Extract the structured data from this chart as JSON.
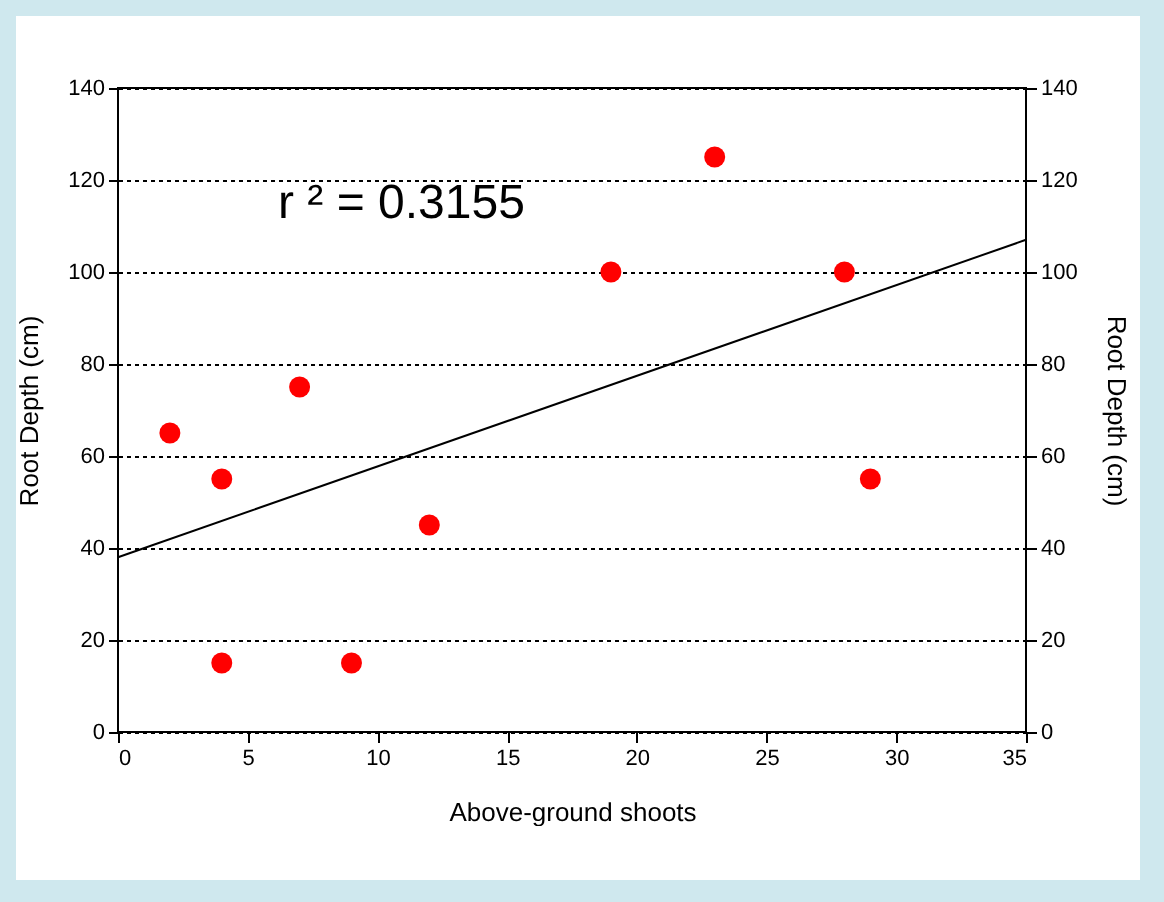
{
  "chart_data": {
    "type": "scatter",
    "xlabel": "Above-ground shoots",
    "ylabel": "Root Depth (cm)",
    "y2label": "Root Depth (cm)",
    "annotations": [
      "r ² = 0.3155"
    ],
    "series": [
      {
        "color": "#ff0000",
        "x": [
          2,
          4,
          4,
          7,
          9,
          12,
          19,
          23,
          28,
          29
        ],
        "values": [
          65,
          55,
          15,
          75,
          15,
          45,
          100,
          125,
          100,
          55
        ]
      },
      {
        "type": "line",
        "color": "#000000",
        "marker": "none",
        "x": [
          0,
          35
        ],
        "values": [
          38,
          107
        ]
      }
    ],
    "xlim": [
      0,
      35
    ],
    "xticks": [
      0,
      5,
      10,
      15,
      20,
      25,
      30,
      35
    ],
    "ylim": [
      0,
      140
    ],
    "yticks": [
      0,
      20,
      40,
      60,
      80,
      100,
      120,
      140
    ],
    "y2lim": [
      0,
      140
    ],
    "y2ticks": [
      0,
      20,
      40,
      60,
      80,
      100,
      120,
      140
    ],
    "grid": "y",
    "marker": "circle"
  }
}
